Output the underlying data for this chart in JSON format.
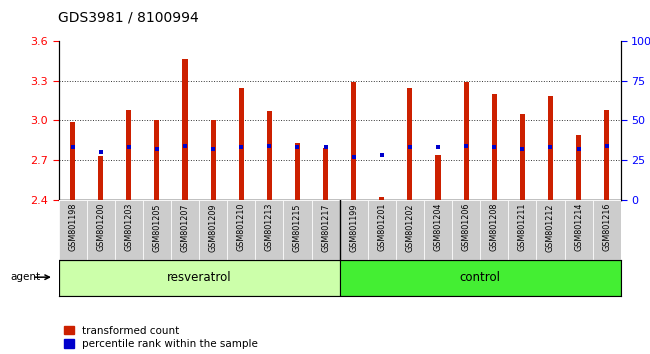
{
  "title": "GDS3981 / 8100994",
  "samples": [
    "GSM801198",
    "GSM801200",
    "GSM801203",
    "GSM801205",
    "GSM801207",
    "GSM801209",
    "GSM801210",
    "GSM801213",
    "GSM801215",
    "GSM801217",
    "GSM801199",
    "GSM801201",
    "GSM801202",
    "GSM801204",
    "GSM801206",
    "GSM801208",
    "GSM801211",
    "GSM801212",
    "GSM801214",
    "GSM801216"
  ],
  "transformed_count": [
    2.99,
    2.73,
    3.08,
    3.0,
    3.46,
    3.0,
    3.24,
    3.07,
    2.83,
    2.79,
    3.29,
    2.42,
    3.24,
    2.74,
    3.29,
    3.2,
    3.05,
    3.18,
    2.89,
    3.08
  ],
  "percentile_rank": [
    33,
    30,
    33,
    32,
    34,
    32,
    33,
    34,
    33,
    33,
    27,
    28,
    33,
    33,
    34,
    33,
    32,
    33,
    32,
    34
  ],
  "n_resveratrol": 10,
  "ymin": 2.4,
  "ymax": 3.6,
  "yticks_left": [
    2.4,
    2.7,
    3.0,
    3.3,
    3.6
  ],
  "right_yticks": [
    0,
    25,
    50,
    75,
    100
  ],
  "bar_color": "#cc2000",
  "blue_color": "#0000cc",
  "resveratrol_bg": "#ccffaa",
  "control_bg": "#44ee33",
  "tick_cell_bg": "#cccccc",
  "bar_width": 0.18,
  "baseline": 2.4,
  "legend_items": [
    "transformed count",
    "percentile rank within the sample"
  ],
  "group_labels": [
    "resveratrol",
    "control"
  ],
  "agent_label": "agent",
  "grid_dotted_at": [
    2.7,
    3.0,
    3.3
  ],
  "title_fontsize": 10
}
